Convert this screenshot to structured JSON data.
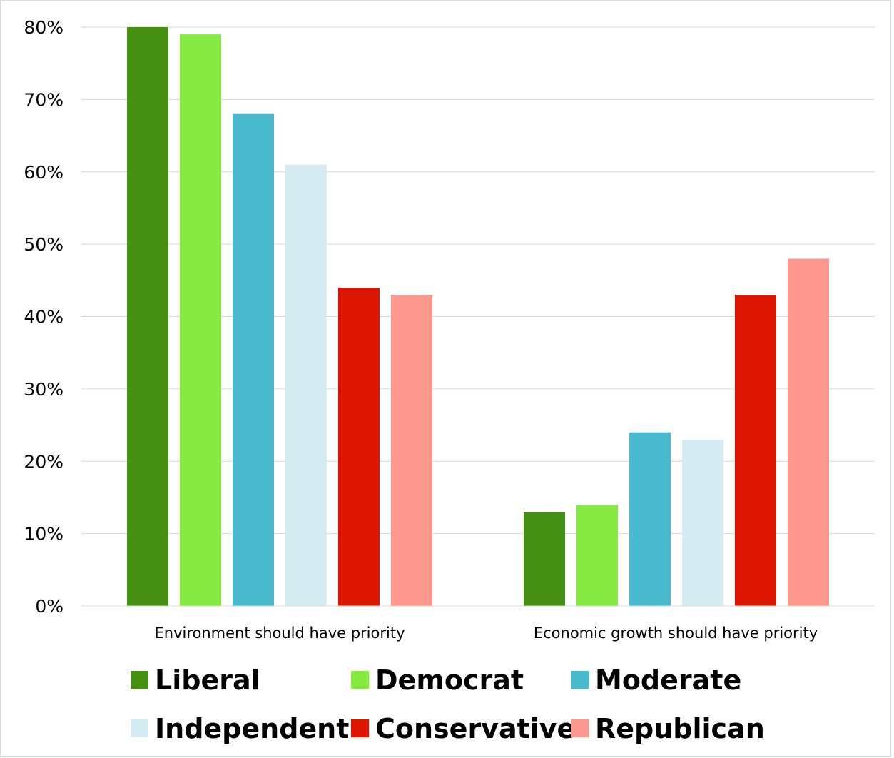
{
  "chart_data": {
    "type": "bar",
    "title": "",
    "xlabel": "",
    "ylabel": "",
    "categories": [
      "Environment should have priority",
      "Economic growth should have priority"
    ],
    "series": [
      {
        "name": "Liberal",
        "values": [
          80,
          13
        ],
        "color": "#458F12"
      },
      {
        "name": "Democrat",
        "values": [
          79,
          14
        ],
        "color": "#86EA42"
      },
      {
        "name": "Moderate",
        "values": [
          68,
          24
        ],
        "color": "#4ABACF"
      },
      {
        "name": "Independent",
        "values": [
          61,
          23
        ],
        "color": "#D5EDF2"
      },
      {
        "name": "Conservative",
        "values": [
          44,
          43
        ],
        "color": "#DC1600"
      },
      {
        "name": "Republican",
        "values": [
          43,
          48
        ],
        "color": "#FE978E"
      }
    ],
    "ylim": [
      0,
      80
    ],
    "yticks": [
      0,
      10,
      20,
      30,
      40,
      50,
      60,
      70,
      80
    ],
    "ytick_labels": [
      "0%",
      "10%",
      "20%",
      "30%",
      "40%",
      "50%",
      "60%",
      "70%",
      "80%"
    ],
    "grid": true,
    "legend_position": "bottom"
  }
}
